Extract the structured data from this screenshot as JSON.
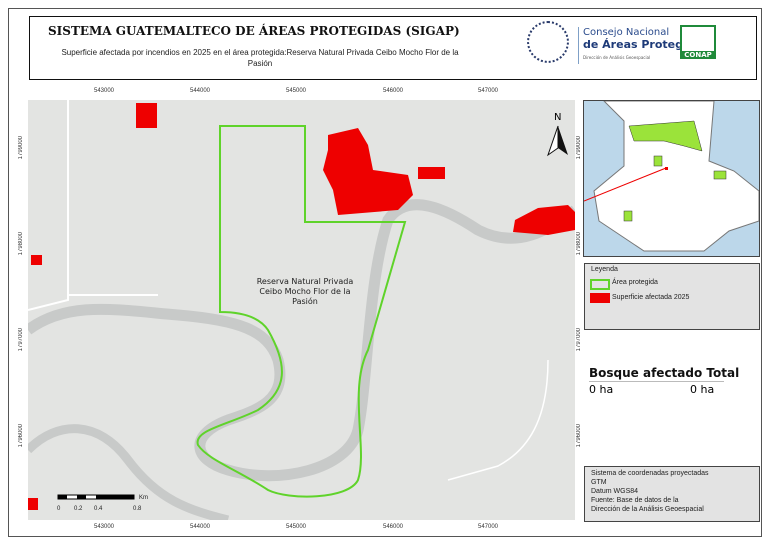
{
  "header": {
    "title": "SISTEMA GUATEMALTECO DE ÁREAS PROTEGIDAS  (SIGAP)",
    "subtitle": "Superficie afectada por incendios en 2025 en el área protegida:Reserva Natural Privada Ceibo Mocho Flor de la Pasión",
    "org_line1": "Consejo Nacional",
    "org_line2": "de Áreas Protegidas",
    "org_line3": "Dirección de Análisis Geoespacial",
    "conap": "CONAP",
    "seal_text": "GOBIERNO DE LA REPÚBLICA DE GUATEMALA"
  },
  "map": {
    "x_ticks": [
      "543000",
      "544000",
      "545000",
      "546000",
      "547000"
    ],
    "y_ticks": [
      "1799000",
      "1798000",
      "1797000",
      "1796000"
    ],
    "area_label": "Reserva Natural Privada Ceibo Mocho Flor de la Pasión",
    "north": "N",
    "scale_unit": "Km",
    "scale_labels": [
      "0",
      "0.2",
      "0.4",
      "0.8"
    ]
  },
  "colors": {
    "protected_area": "#5fd32a",
    "burned": "#ee0000",
    "river": "#c8cac9",
    "land": "#e3e4e2"
  },
  "legend": {
    "title": "Leyenda",
    "items": [
      {
        "label": "Área protegida"
      },
      {
        "label": "Superficie afectada 2025"
      }
    ]
  },
  "stats": {
    "col1": "Bosque afectado",
    "col2": "Total",
    "val1": "0 ha",
    "val2": "0 ha"
  },
  "info": {
    "lines": [
      "Sistema de coordenadas proyectadas",
      "GTM",
      "Datum WGS84",
      "Fuente: Base de datos de la",
      "Dirección de la Análisis Geoespacial"
    ]
  }
}
